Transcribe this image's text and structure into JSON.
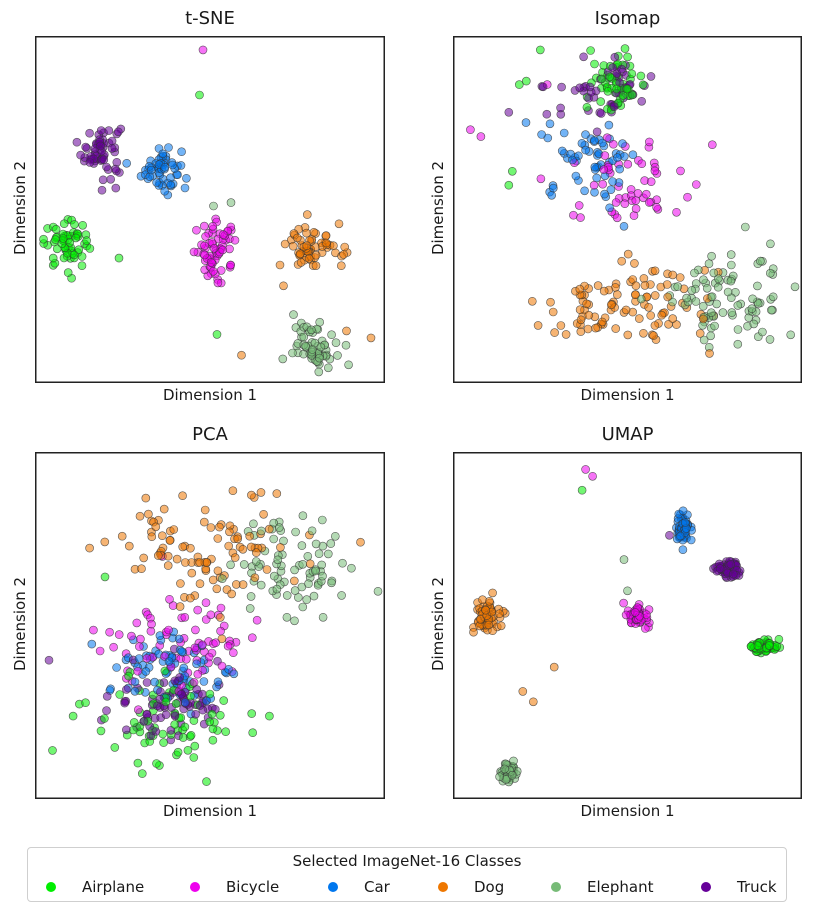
{
  "legend": {
    "title": "Selected ImageNet-16 Classes",
    "entries": [
      {
        "name": "Airplane",
        "color": "#00ee00"
      },
      {
        "name": "Bicycle",
        "color": "#ee00ee"
      },
      {
        "name": "Car",
        "color": "#0077ee"
      },
      {
        "name": "Dog",
        "color": "#ee7700"
      },
      {
        "name": "Elephant",
        "color": "#77bb77"
      },
      {
        "name": "Truck",
        "color": "#660099"
      }
    ]
  },
  "chart_data": [
    {
      "type": "scatter",
      "title": "t-SNE",
      "xlabel": "Dimension 1",
      "ylabel": "Dimension 2",
      "xlim": [
        0,
        1
      ],
      "ylim": [
        0,
        1
      ],
      "grid": false,
      "clusters": [
        {
          "name": "Truck",
          "center": [
            0.19,
            0.67
          ],
          "spread": [
            0.035,
            0.05
          ],
          "count": 60
        },
        {
          "name": "Car",
          "center": [
            0.36,
            0.62
          ],
          "spread": [
            0.035,
            0.045
          ],
          "count": 55
        },
        {
          "name": "Airplane",
          "center": [
            0.09,
            0.4
          ],
          "spread": [
            0.04,
            0.04
          ],
          "count": 60
        },
        {
          "name": "Bicycle",
          "center": [
            0.52,
            0.38
          ],
          "spread": [
            0.04,
            0.05
          ],
          "count": 65
        },
        {
          "name": "Dog",
          "center": [
            0.8,
            0.39
          ],
          "spread": [
            0.05,
            0.04
          ],
          "count": 60
        },
        {
          "name": "Elephant",
          "center": [
            0.8,
            0.11
          ],
          "spread": [
            0.04,
            0.04
          ],
          "count": 60
        }
      ],
      "outliers": [
        {
          "name": "Bicycle",
          "x": 0.48,
          "y": 0.96
        },
        {
          "name": "Airplane",
          "x": 0.47,
          "y": 0.83
        },
        {
          "name": "Elephant",
          "x": 0.51,
          "y": 0.51
        },
        {
          "name": "Elephant",
          "x": 0.56,
          "y": 0.52
        },
        {
          "name": "Airplane",
          "x": 0.24,
          "y": 0.36
        },
        {
          "name": "Airplane",
          "x": 0.52,
          "y": 0.14
        },
        {
          "name": "Dog",
          "x": 0.59,
          "y": 0.08
        },
        {
          "name": "Dog",
          "x": 0.7,
          "y": 0.34
        },
        {
          "name": "Dog",
          "x": 0.71,
          "y": 0.28
        },
        {
          "name": "Dog",
          "x": 0.96,
          "y": 0.13
        },
        {
          "name": "Dog",
          "x": 0.89,
          "y": 0.15
        }
      ]
    },
    {
      "type": "scatter",
      "title": "Isomap",
      "xlabel": "Dimension 1",
      "ylabel": "Dimension 2",
      "xlim": [
        0,
        1
      ],
      "ylim": [
        0,
        1
      ],
      "grid": false,
      "clusters": [
        {
          "name": "Airplane",
          "center": [
            0.47,
            0.87
          ],
          "spread": [
            0.05,
            0.05
          ],
          "count": 50
        },
        {
          "name": "Truck",
          "center": [
            0.43,
            0.84
          ],
          "spread": [
            0.09,
            0.06
          ],
          "count": 55
        },
        {
          "name": "Car",
          "center": [
            0.4,
            0.65
          ],
          "spread": [
            0.09,
            0.07
          ],
          "count": 60
        },
        {
          "name": "Bicycle",
          "center": [
            0.5,
            0.58
          ],
          "spread": [
            0.1,
            0.08
          ],
          "count": 55
        },
        {
          "name": "Dog",
          "center": [
            0.48,
            0.22
          ],
          "spread": [
            0.16,
            0.08
          ],
          "count": 100
        },
        {
          "name": "Elephant",
          "center": [
            0.78,
            0.24
          ],
          "spread": [
            0.12,
            0.08
          ],
          "count": 90
        }
      ],
      "outliers": [
        {
          "name": "Airplane",
          "x": 0.25,
          "y": 0.96
        },
        {
          "name": "Airplane",
          "x": 0.19,
          "y": 0.86
        },
        {
          "name": "Airplane",
          "x": 0.21,
          "y": 0.87
        },
        {
          "name": "Bicycle",
          "x": 0.05,
          "y": 0.73
        },
        {
          "name": "Bicycle",
          "x": 0.08,
          "y": 0.71
        },
        {
          "name": "Airplane",
          "x": 0.16,
          "y": 0.57
        },
        {
          "name": "Airplane",
          "x": 0.17,
          "y": 0.61
        },
        {
          "name": "Bicycle",
          "x": 0.27,
          "y": 0.86
        },
        {
          "name": "Truck",
          "x": 0.16,
          "y": 0.78
        }
      ]
    },
    {
      "type": "scatter",
      "title": "PCA",
      "xlabel": "Dimension 1",
      "ylabel": "Dimension 2",
      "xlim": [
        0,
        1
      ],
      "ylim": [
        0,
        1
      ],
      "grid": false,
      "clusters": [
        {
          "name": "Dog",
          "center": [
            0.5,
            0.72
          ],
          "spread": [
            0.16,
            0.1
          ],
          "count": 100
        },
        {
          "name": "Elephant",
          "center": [
            0.74,
            0.67
          ],
          "spread": [
            0.12,
            0.09
          ],
          "count": 80
        },
        {
          "name": "Bicycle",
          "center": [
            0.42,
            0.45
          ],
          "spread": [
            0.13,
            0.09
          ],
          "count": 75
        },
        {
          "name": "Car",
          "center": [
            0.4,
            0.37
          ],
          "spread": [
            0.11,
            0.07
          ],
          "count": 80
        },
        {
          "name": "Truck",
          "center": [
            0.38,
            0.28
          ],
          "spread": [
            0.1,
            0.06
          ],
          "count": 75
        },
        {
          "name": "Airplane",
          "center": [
            0.39,
            0.23
          ],
          "spread": [
            0.12,
            0.08
          ],
          "count": 75
        }
      ],
      "outliers": [
        {
          "name": "Truck",
          "x": 0.04,
          "y": 0.4
        },
        {
          "name": "Airplane",
          "x": 0.05,
          "y": 0.14
        },
        {
          "name": "Airplane",
          "x": 0.2,
          "y": 0.64
        },
        {
          "name": "Airplane",
          "x": 0.49,
          "y": 0.05
        },
        {
          "name": "Dog",
          "x": 0.93,
          "y": 0.74
        }
      ]
    },
    {
      "type": "scatter",
      "title": "UMAP",
      "xlabel": "Dimension 1",
      "ylabel": "Dimension 2",
      "xlim": [
        0,
        1
      ],
      "ylim": [
        0,
        1
      ],
      "grid": false,
      "clusters": [
        {
          "name": "Car",
          "center": [
            0.66,
            0.78
          ],
          "spread": [
            0.012,
            0.03
          ],
          "count": 55
        },
        {
          "name": "Truck",
          "center": [
            0.79,
            0.66
          ],
          "spread": [
            0.025,
            0.018
          ],
          "count": 60
        },
        {
          "name": "Bicycle",
          "center": [
            0.53,
            0.53
          ],
          "spread": [
            0.018,
            0.02
          ],
          "count": 55
        },
        {
          "name": "Dog",
          "center": [
            0.1,
            0.53
          ],
          "spread": [
            0.03,
            0.03
          ],
          "count": 55
        },
        {
          "name": "Airplane",
          "center": [
            0.89,
            0.44
          ],
          "spread": [
            0.03,
            0.012
          ],
          "count": 60
        },
        {
          "name": "Elephant",
          "center": [
            0.16,
            0.08
          ],
          "spread": [
            0.015,
            0.02
          ],
          "count": 55
        }
      ],
      "outliers": [
        {
          "name": "Bicycle",
          "x": 0.38,
          "y": 0.95
        },
        {
          "name": "Bicycle",
          "x": 0.4,
          "y": 0.93
        },
        {
          "name": "Airplane",
          "x": 0.37,
          "y": 0.89
        },
        {
          "name": "Elephant",
          "x": 0.49,
          "y": 0.69
        },
        {
          "name": "Elephant",
          "x": 0.5,
          "y": 0.6
        },
        {
          "name": "Truck",
          "x": 0.62,
          "y": 0.76
        },
        {
          "name": "Dog",
          "x": 0.29,
          "y": 0.38
        },
        {
          "name": "Dog",
          "x": 0.2,
          "y": 0.31
        },
        {
          "name": "Dog",
          "x": 0.23,
          "y": 0.28
        }
      ]
    }
  ]
}
